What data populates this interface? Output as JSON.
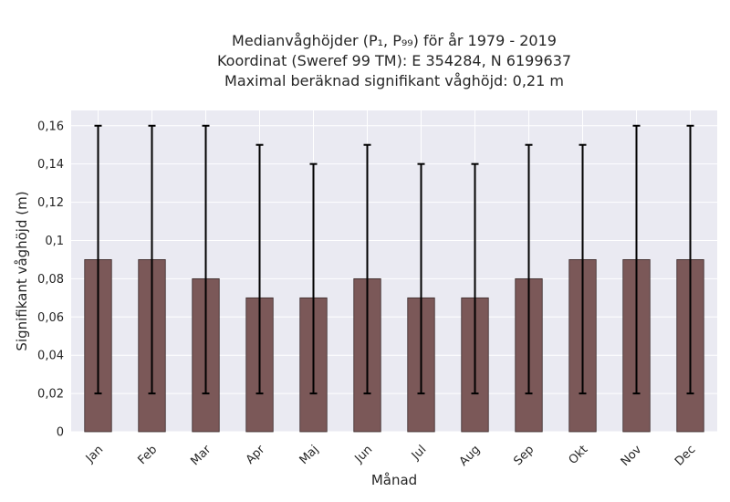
{
  "chart_data": {
    "type": "bar",
    "title_lines": [
      "Medianvåghöjder (P₁, P₉₉) för år 1979 - 2019",
      "Koordinat (Sweref 99 TM): E 354284, N 6199637",
      "Maximal beräknad signifikant våghöjd: 0,21 m"
    ],
    "xlabel": "Månad",
    "ylabel": "Signifikant våghöjd (m)",
    "categories": [
      "Jan",
      "Feb",
      "Mar",
      "Apr",
      "Maj",
      "Jun",
      "Jul",
      "Aug",
      "Sep",
      "Okt",
      "Nov",
      "Dec"
    ],
    "values": [
      0.09,
      0.09,
      0.08,
      0.07,
      0.07,
      0.08,
      0.07,
      0.07,
      0.08,
      0.09,
      0.09,
      0.09
    ],
    "error_low": [
      0.02,
      0.02,
      0.02,
      0.02,
      0.02,
      0.02,
      0.02,
      0.02,
      0.02,
      0.02,
      0.02,
      0.02
    ],
    "error_high": [
      0.16,
      0.16,
      0.16,
      0.15,
      0.14,
      0.15,
      0.14,
      0.14,
      0.15,
      0.15,
      0.16,
      0.16
    ],
    "ylim": [
      0,
      0.168
    ],
    "yticks": [
      0,
      0.02,
      0.04,
      0.06,
      0.08,
      0.1,
      0.12,
      0.14,
      0.16
    ],
    "ytick_labels": [
      "0",
      "0,02",
      "0,04",
      "0,06",
      "0,08",
      "0,1",
      "0,12",
      "0,14",
      "0,16"
    ],
    "grid": true,
    "colors": {
      "bar": "#7b5858",
      "bar_edge": "#3a2a2a",
      "error": "#000000",
      "plot_bg": "#eaeaf2",
      "grid": "#ffffff"
    }
  }
}
